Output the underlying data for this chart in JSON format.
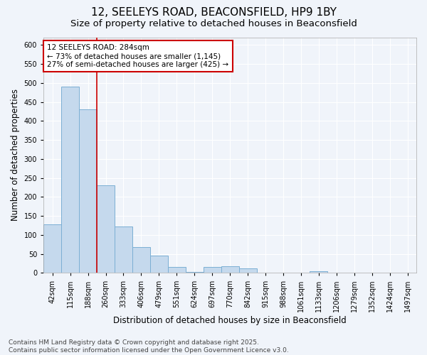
{
  "title1": "12, SEELEYS ROAD, BEACONSFIELD, HP9 1BY",
  "title2": "Size of property relative to detached houses in Beaconsfield",
  "xlabel": "Distribution of detached houses by size in Beaconsfield",
  "ylabel": "Number of detached properties",
  "categories": [
    "42sqm",
    "115sqm",
    "188sqm",
    "260sqm",
    "333sqm",
    "406sqm",
    "479sqm",
    "551sqm",
    "624sqm",
    "697sqm",
    "770sqm",
    "842sqm",
    "915sqm",
    "988sqm",
    "1061sqm",
    "1133sqm",
    "1206sqm",
    "1279sqm",
    "1352sqm",
    "1424sqm",
    "1497sqm"
  ],
  "values": [
    128,
    490,
    430,
    230,
    122,
    68,
    45,
    15,
    2,
    16,
    18,
    12,
    1,
    1,
    0,
    5,
    0,
    1,
    0,
    0,
    1
  ],
  "bar_color": "#c5d9ed",
  "bar_edge_color": "#7bafd4",
  "red_line_x": 2.5,
  "annotation_text": "12 SEELEYS ROAD: 284sqm\n← 73% of detached houses are smaller (1,145)\n27% of semi-detached houses are larger (425) →",
  "annotation_box_color": "#ffffff",
  "annotation_box_edge": "#cc0000",
  "ylim": [
    0,
    620
  ],
  "yticks": [
    0,
    50,
    100,
    150,
    200,
    250,
    300,
    350,
    400,
    450,
    500,
    550,
    600
  ],
  "fig_bg_color": "#f0f4fa",
  "plot_bg_color": "#f0f4fa",
  "grid_color": "#ffffff",
  "footer": "Contains HM Land Registry data © Crown copyright and database right 2025.\nContains public sector information licensed under the Open Government Licence v3.0.",
  "title_fontsize": 11,
  "subtitle_fontsize": 9.5,
  "axis_label_fontsize": 8.5,
  "tick_fontsize": 7,
  "annotation_fontsize": 7.5,
  "footer_fontsize": 6.5
}
